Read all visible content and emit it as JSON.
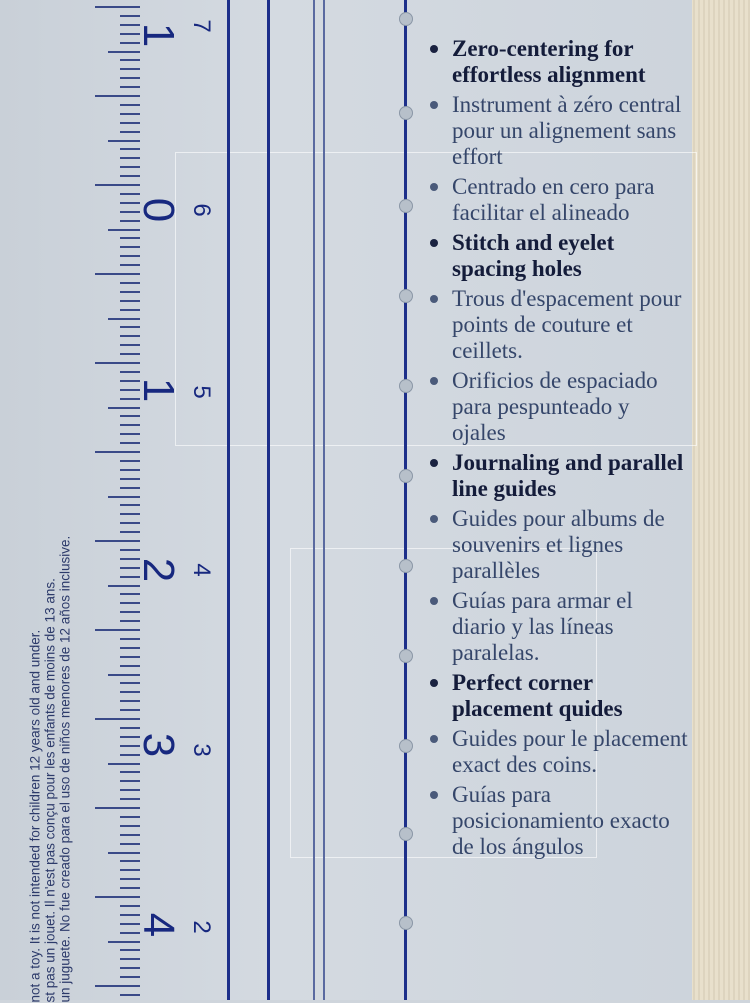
{
  "ruler": {
    "inch_numbers": [
      "1",
      "0",
      "1",
      "2",
      "3",
      "4"
    ],
    "cm_numbers": [
      "7",
      "6",
      "5",
      "4",
      "3",
      "2"
    ]
  },
  "warning": {
    "lines": [
      "not a toy. It is not intended for children 12 years old and under.",
      "st pas un jouet. Il n'est pas conçu pour les enfants de moins de 13 ans.",
      "un juguete. No fue creado para el uso de niños menores de 12 años inclusive."
    ]
  },
  "features": [
    {
      "lang": "en",
      "text": "Zero-centering for effortless alignment"
    },
    {
      "lang": "fr",
      "text": "Instrument à zéro central pour un alignement sans effort"
    },
    {
      "lang": "es",
      "text": "Centrado en cero para facilitar el alineado"
    },
    {
      "lang": "en",
      "text": "Stitch and eyelet spacing holes"
    },
    {
      "lang": "fr",
      "text": "Trous d'espacement pour points de couture et ceillets."
    },
    {
      "lang": "es",
      "text": "Orificios de espaciado para pespunteado y ojales"
    },
    {
      "lang": "en",
      "text": "Journaling and parallel line guides"
    },
    {
      "lang": "fr",
      "text": "Guides pour albums de souvenirs et lignes parallèles"
    },
    {
      "lang": "es",
      "text": "Guías para armar el diario y las líneas paralelas."
    },
    {
      "lang": "en",
      "text": "Perfect corner placement quides"
    },
    {
      "lang": "fr",
      "text": "Guides pour le placement exact des coins."
    },
    {
      "lang": "es",
      "text": "Guías para posicionamiento exacto de los ángulos"
    }
  ],
  "colors": {
    "ruler_blue": "#1d2f8a",
    "plastic": "#cfd5dc",
    "background": "#e5dcc8"
  }
}
